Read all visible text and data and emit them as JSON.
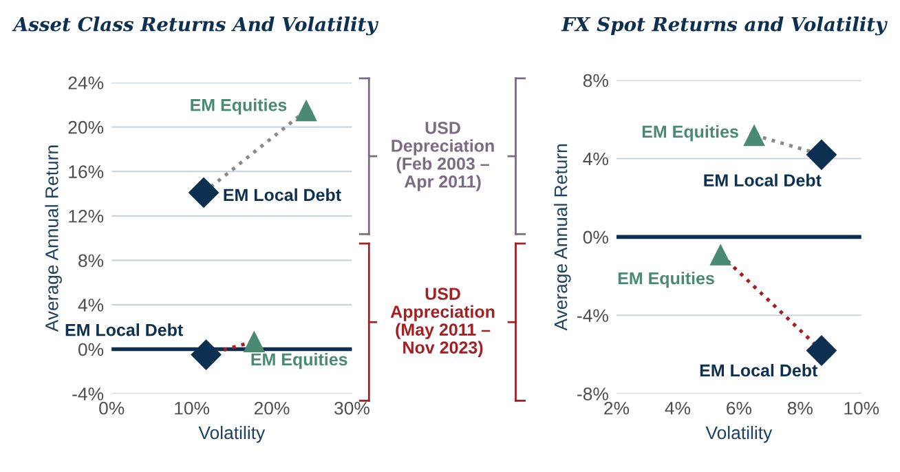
{
  "chart_data": [
    {
      "type": "scatter",
      "title": "Asset Class Returns And Volatility",
      "xlabel": "Volatility",
      "ylabel": "Average Annual Return",
      "xlim": [
        0,
        30
      ],
      "xticks": [
        {
          "value": 0,
          "label": "0%"
        },
        {
          "value": 10,
          "label": "10%"
        },
        {
          "value": 20,
          "label": "20%"
        },
        {
          "value": 30,
          "label": "30%"
        }
      ],
      "ylim": [
        -4,
        24
      ],
      "yticks": [
        {
          "value": -4,
          "label": "-4%"
        },
        {
          "value": 0,
          "label": "0%"
        },
        {
          "value": 4,
          "label": "4%"
        },
        {
          "value": 8,
          "label": "8%"
        },
        {
          "value": 12,
          "label": "12%"
        },
        {
          "value": 16,
          "label": "16%"
        },
        {
          "value": 20,
          "label": "20%"
        },
        {
          "value": 24,
          "label": "24%"
        }
      ],
      "grid": "y",
      "ref_lines": [
        {
          "axis": "y",
          "value": 0,
          "color": "#0d3050"
        }
      ],
      "annotations": [
        "USD\nDepreciation\n(Feb 2003 –\nApr 2011)",
        "USD\nAppreciation\n(May 2011 –\nNov 2023)"
      ],
      "series": [
        {
          "type": "line",
          "color": "#8a8a8a",
          "line_style": "dotted",
          "marker": "none",
          "x": [
            11.5,
            24.3
          ],
          "values": [
            14.1,
            21.5
          ]
        },
        {
          "type": "line",
          "color": "#a31f24",
          "line_style": "dotted",
          "marker": "none",
          "x": [
            11.8,
            17.8
          ],
          "values": [
            -0.5,
            0.7
          ]
        },
        {
          "name": "EM Equities",
          "color": "#4a8a72",
          "marker": "triangle",
          "x": [
            24.3,
            17.8
          ],
          "values": [
            21.5,
            0.7
          ]
        },
        {
          "name": "EM Local Debt",
          "color": "#0d3050",
          "marker": "diamond",
          "x": [
            11.5,
            11.8
          ],
          "values": [
            14.1,
            -0.5
          ]
        }
      ]
    },
    {
      "type": "scatter",
      "title": "FX Spot Returns and Volatility",
      "xlabel": "Volatility",
      "ylabel": "Average Annual Return",
      "xlim": [
        2,
        10
      ],
      "xticks": [
        {
          "value": 2,
          "label": "2%"
        },
        {
          "value": 4,
          "label": "4%"
        },
        {
          "value": 6,
          "label": "6%"
        },
        {
          "value": 8,
          "label": "8%"
        },
        {
          "value": 10,
          "label": "10%"
        }
      ],
      "ylim": [
        -8,
        8
      ],
      "yticks": [
        {
          "value": -8,
          "label": "-8%"
        },
        {
          "value": -4,
          "label": "-4%"
        },
        {
          "value": 0,
          "label": "0%"
        },
        {
          "value": 4,
          "label": "4%"
        },
        {
          "value": 8,
          "label": "8%"
        }
      ],
      "grid": "y",
      "ref_lines": [
        {
          "axis": "y",
          "value": 0,
          "color": "#0d3050"
        }
      ],
      "series": [
        {
          "type": "line",
          "color": "#8a8a8a",
          "line_style": "dotted",
          "marker": "none",
          "x": [
            6.5,
            8.7
          ],
          "values": [
            5.2,
            4.2
          ]
        },
        {
          "type": "line",
          "color": "#a31f24",
          "line_style": "dotted",
          "marker": "none",
          "x": [
            5.4,
            8.7
          ],
          "values": [
            -0.9,
            -5.8
          ]
        },
        {
          "name": "EM Equities",
          "color": "#4a8a72",
          "marker": "triangle",
          "x": [
            6.5,
            5.4
          ],
          "values": [
            5.2,
            -0.9
          ]
        },
        {
          "name": "EM Local Debt",
          "color": "#0d3050",
          "marker": "diamond",
          "x": [
            8.7,
            8.7
          ],
          "values": [
            4.2,
            -5.8
          ]
        }
      ]
    }
  ]
}
